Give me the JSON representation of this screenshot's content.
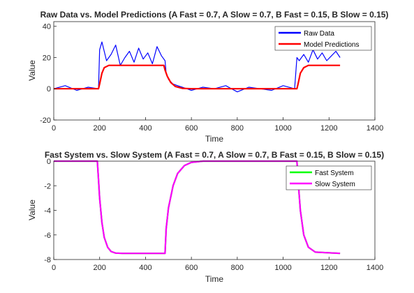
{
  "chart_data": [
    {
      "type": "line",
      "title": "Raw Data vs. Model Predictions (A Fast = 0.7, A Slow = 0.7, B Fast = 0.15, B Slow = 0.15)",
      "xlabel": "Time",
      "ylabel": "Value",
      "xlim": [
        0,
        1400
      ],
      "ylim": [
        -20,
        43
      ],
      "xticks": [
        "0",
        "200",
        "400",
        "600",
        "800",
        "1000",
        "1200",
        "1400"
      ],
      "yticks": [
        "-20",
        "0",
        "20",
        "40"
      ],
      "legend_position": "top-right",
      "series": [
        {
          "name": "Raw Data",
          "color": "#0000ff",
          "x": [
            0,
            50,
            100,
            150,
            195,
            200,
            210,
            230,
            250,
            270,
            290,
            310,
            330,
            350,
            370,
            390,
            410,
            430,
            450,
            470,
            485,
            490,
            500,
            520,
            540,
            560,
            580,
            600,
            650,
            700,
            750,
            800,
            850,
            900,
            950,
            1000,
            1050,
            1060,
            1070,
            1090,
            1110,
            1130,
            1150,
            1170,
            1190,
            1210,
            1230,
            1248
          ],
          "y": [
            0,
            2,
            -1,
            1,
            0,
            25,
            30,
            18,
            22,
            28,
            15,
            20,
            24,
            17,
            26,
            19,
            23,
            16,
            27,
            21,
            18,
            10,
            6,
            3,
            2,
            1,
            0,
            -1,
            1,
            0,
            2,
            -2,
            1,
            0,
            -1,
            2,
            0,
            20,
            18,
            22,
            17,
            25,
            19,
            23,
            18,
            21,
            24,
            20
          ]
        },
        {
          "name": "Model Predictions",
          "color": "#ff0000",
          "x": [
            0,
            195,
            200,
            210,
            220,
            240,
            480,
            485,
            495,
            510,
            530,
            560,
            600,
            1060,
            1065,
            1075,
            1090,
            1110,
            1248
          ],
          "y": [
            0,
            0,
            3,
            10,
            13.5,
            15,
            15,
            12,
            8,
            4,
            1.5,
            0.3,
            0,
            0,
            3,
            10,
            13.5,
            15,
            15
          ]
        }
      ]
    },
    {
      "type": "line",
      "title": "Fast System vs. Slow System (A Fast = 0.7, A Slow = 0.7, B Fast = 0.15, B Slow = 0.15)",
      "xlabel": "Time",
      "ylabel": "Value",
      "xlim": [
        0,
        1400
      ],
      "ylim": [
        -8,
        0
      ],
      "xticks": [
        "0",
        "200",
        "400",
        "600",
        "800",
        "1000",
        "1200",
        "1400"
      ],
      "yticks": [
        "-8",
        "-6",
        "-4",
        "-2",
        "0"
      ],
      "legend_position": "top-right",
      "series": [
        {
          "name": "Fast System",
          "color": "#00ff00",
          "x": [
            0,
            190,
            195,
            200,
            210,
            220,
            235,
            250,
            270,
            300,
            350,
            485,
            490,
            500,
            520,
            540,
            570,
            600,
            650,
            1060,
            1065,
            1075,
            1090,
            1110,
            1140,
            1248
          ],
          "y": [
            0,
            0,
            -1.5,
            -3,
            -5,
            -6.2,
            -7,
            -7.35,
            -7.48,
            -7.5,
            -7.5,
            -7.5,
            -5.5,
            -3.8,
            -2,
            -1,
            -0.35,
            -0.1,
            0,
            0,
            -1.5,
            -4,
            -6,
            -7,
            -7.4,
            -7.5
          ]
        },
        {
          "name": "Slow System",
          "color": "#ff00ff",
          "x": [
            0,
            190,
            195,
            200,
            210,
            220,
            235,
            250,
            270,
            300,
            350,
            485,
            490,
            500,
            520,
            540,
            570,
            600,
            650,
            1060,
            1065,
            1075,
            1090,
            1110,
            1140,
            1248
          ],
          "y": [
            0,
            0,
            -1.5,
            -3,
            -5,
            -6.2,
            -7,
            -7.35,
            -7.48,
            -7.5,
            -7.5,
            -7.5,
            -5.5,
            -3.8,
            -2,
            -1,
            -0.35,
            -0.1,
            0,
            0,
            -1.5,
            -4,
            -6,
            -7,
            -7.4,
            -7.5
          ]
        }
      ]
    }
  ]
}
